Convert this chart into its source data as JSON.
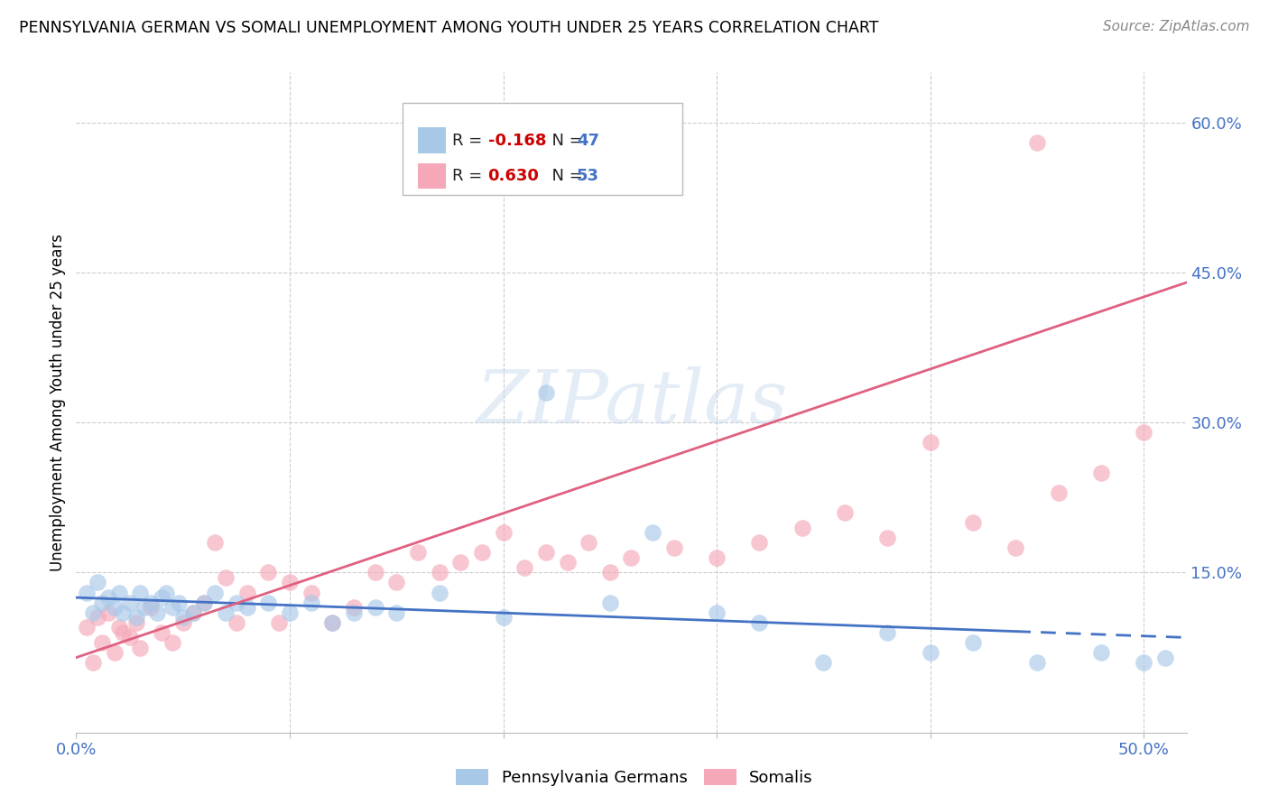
{
  "title": "PENNSYLVANIA GERMAN VS SOMALI UNEMPLOYMENT AMONG YOUTH UNDER 25 YEARS CORRELATION CHART",
  "source": "Source: ZipAtlas.com",
  "ylabel": "Unemployment Among Youth under 25 years",
  "xlim": [
    0.0,
    0.52
  ],
  "ylim": [
    -0.01,
    0.65
  ],
  "xtick_positions": [
    0.0,
    0.1,
    0.2,
    0.3,
    0.4,
    0.5
  ],
  "xtick_labels": [
    "0.0%",
    "",
    "",
    "",
    "",
    "50.0%"
  ],
  "ytick_right_vals": [
    0.15,
    0.3,
    0.45,
    0.6
  ],
  "ytick_right_labels": [
    "15.0%",
    "30.0%",
    "45.0%",
    "60.0%"
  ],
  "R_blue": -0.168,
  "N_blue": 47,
  "R_pink": 0.63,
  "N_pink": 53,
  "blue_color": "#a8c8e8",
  "pink_color": "#f4a8b8",
  "blue_line_color": "#4472c4",
  "pink_line_color": "#e06080",
  "blue_scatter_x": [
    0.005,
    0.008,
    0.01,
    0.012,
    0.015,
    0.018,
    0.02,
    0.022,
    0.025,
    0.028,
    0.03,
    0.032,
    0.035,
    0.038,
    0.04,
    0.042,
    0.045,
    0.048,
    0.05,
    0.055,
    0.06,
    0.065,
    0.07,
    0.075,
    0.08,
    0.09,
    0.1,
    0.11,
    0.12,
    0.13,
    0.14,
    0.15,
    0.17,
    0.2,
    0.22,
    0.25,
    0.27,
    0.3,
    0.32,
    0.35,
    0.38,
    0.4,
    0.42,
    0.45,
    0.48,
    0.5,
    0.51
  ],
  "blue_scatter_y": [
    0.13,
    0.11,
    0.14,
    0.12,
    0.125,
    0.115,
    0.13,
    0.11,
    0.12,
    0.105,
    0.13,
    0.115,
    0.12,
    0.11,
    0.125,
    0.13,
    0.115,
    0.12,
    0.105,
    0.11,
    0.12,
    0.13,
    0.11,
    0.12,
    0.115,
    0.12,
    0.11,
    0.12,
    0.1,
    0.11,
    0.115,
    0.11,
    0.13,
    0.105,
    0.33,
    0.12,
    0.19,
    0.11,
    0.1,
    0.06,
    0.09,
    0.07,
    0.08,
    0.06,
    0.07,
    0.06,
    0.065
  ],
  "pink_scatter_x": [
    0.005,
    0.008,
    0.01,
    0.012,
    0.015,
    0.018,
    0.02,
    0.022,
    0.025,
    0.028,
    0.03,
    0.035,
    0.04,
    0.045,
    0.05,
    0.055,
    0.06,
    0.065,
    0.07,
    0.075,
    0.08,
    0.09,
    0.095,
    0.1,
    0.11,
    0.12,
    0.13,
    0.14,
    0.15,
    0.16,
    0.17,
    0.18,
    0.19,
    0.2,
    0.21,
    0.22,
    0.23,
    0.24,
    0.25,
    0.26,
    0.28,
    0.3,
    0.32,
    0.34,
    0.36,
    0.38,
    0.4,
    0.42,
    0.44,
    0.46,
    0.48,
    0.5,
    0.45
  ],
  "pink_scatter_y": [
    0.095,
    0.06,
    0.105,
    0.08,
    0.11,
    0.07,
    0.095,
    0.09,
    0.085,
    0.1,
    0.075,
    0.115,
    0.09,
    0.08,
    0.1,
    0.11,
    0.12,
    0.18,
    0.145,
    0.1,
    0.13,
    0.15,
    0.1,
    0.14,
    0.13,
    0.1,
    0.115,
    0.15,
    0.14,
    0.17,
    0.15,
    0.16,
    0.17,
    0.19,
    0.155,
    0.17,
    0.16,
    0.18,
    0.15,
    0.165,
    0.175,
    0.165,
    0.18,
    0.195,
    0.21,
    0.185,
    0.28,
    0.2,
    0.175,
    0.23,
    0.25,
    0.29,
    0.58
  ],
  "blue_line_x": [
    0.0,
    0.52
  ],
  "blue_line_y_start": 0.125,
  "blue_line_y_end": 0.085,
  "pink_line_x": [
    0.0,
    0.52
  ],
  "pink_line_y_start": 0.065,
  "pink_line_y_end": 0.44,
  "watermark_text": "ZIPatlas",
  "legend_R_blue_text": "-0.168",
  "legend_R_pink_text": "0.630",
  "legend_N_blue": "47",
  "legend_N_pink": "53"
}
